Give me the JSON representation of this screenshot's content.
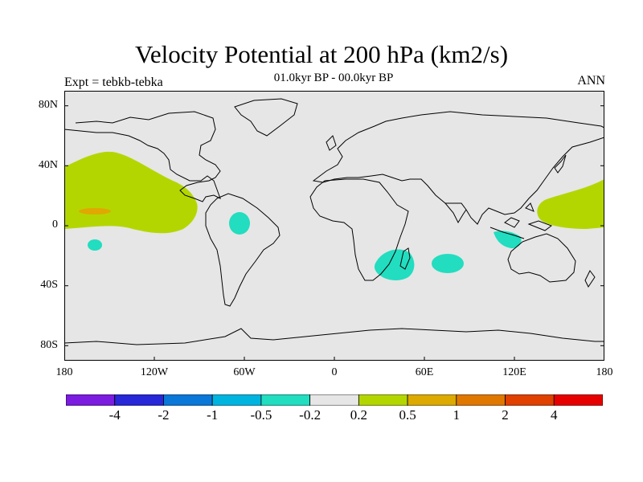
{
  "title": "Velocity Potential at 200 hPa (km2/s)",
  "subtitle": "01.0kyr BP - 00.0kyr BP",
  "experiment": "Expt = tebkb-tebka",
  "season": "ANN",
  "map": {
    "background_color": "#e6e6e6",
    "coastline_color": "#000000",
    "lat_ticks": [
      "80N",
      "40N",
      "0",
      "40S",
      "80S"
    ],
    "lon_ticks": [
      "180",
      "120W",
      "60W",
      "0",
      "60E",
      "120E",
      "180"
    ],
    "regions": [
      {
        "name": "eastern-pacific-positive",
        "color": "#b4d600",
        "category": "0.2 to 0.5"
      },
      {
        "name": "equatorial-pacific-core",
        "color": "#e0a800",
        "category": "0.5 to 1"
      },
      {
        "name": "western-pacific-positive",
        "color": "#b4d600",
        "category": "0.2 to 0.5"
      },
      {
        "name": "south-pacific-negative",
        "color": "#22ddc0",
        "category": "-0.5 to -0.2"
      },
      {
        "name": "amazon-negative",
        "color": "#22ddc0",
        "category": "-0.5 to -0.2"
      },
      {
        "name": "madagascar-negative",
        "color": "#22ddc0",
        "category": "-0.5 to -0.2"
      },
      {
        "name": "indian-ocean-negative",
        "color": "#22ddc0",
        "category": "-0.5 to -0.2"
      },
      {
        "name": "maritime-continent-negative",
        "color": "#22ddc0",
        "category": "-0.5 to -0.2"
      }
    ]
  },
  "colorbar": {
    "colors": [
      "#7b1ce0",
      "#2828d8",
      "#0a78d8",
      "#00b4e0",
      "#22ddc0",
      "#e6e6e6",
      "#b4d600",
      "#dcaa00",
      "#e07800",
      "#e04000",
      "#e60000"
    ],
    "labels": [
      "-4",
      "-2",
      "-1",
      "-0.5",
      "-0.2",
      "0.2",
      "0.5",
      "1",
      "2",
      "4"
    ]
  }
}
